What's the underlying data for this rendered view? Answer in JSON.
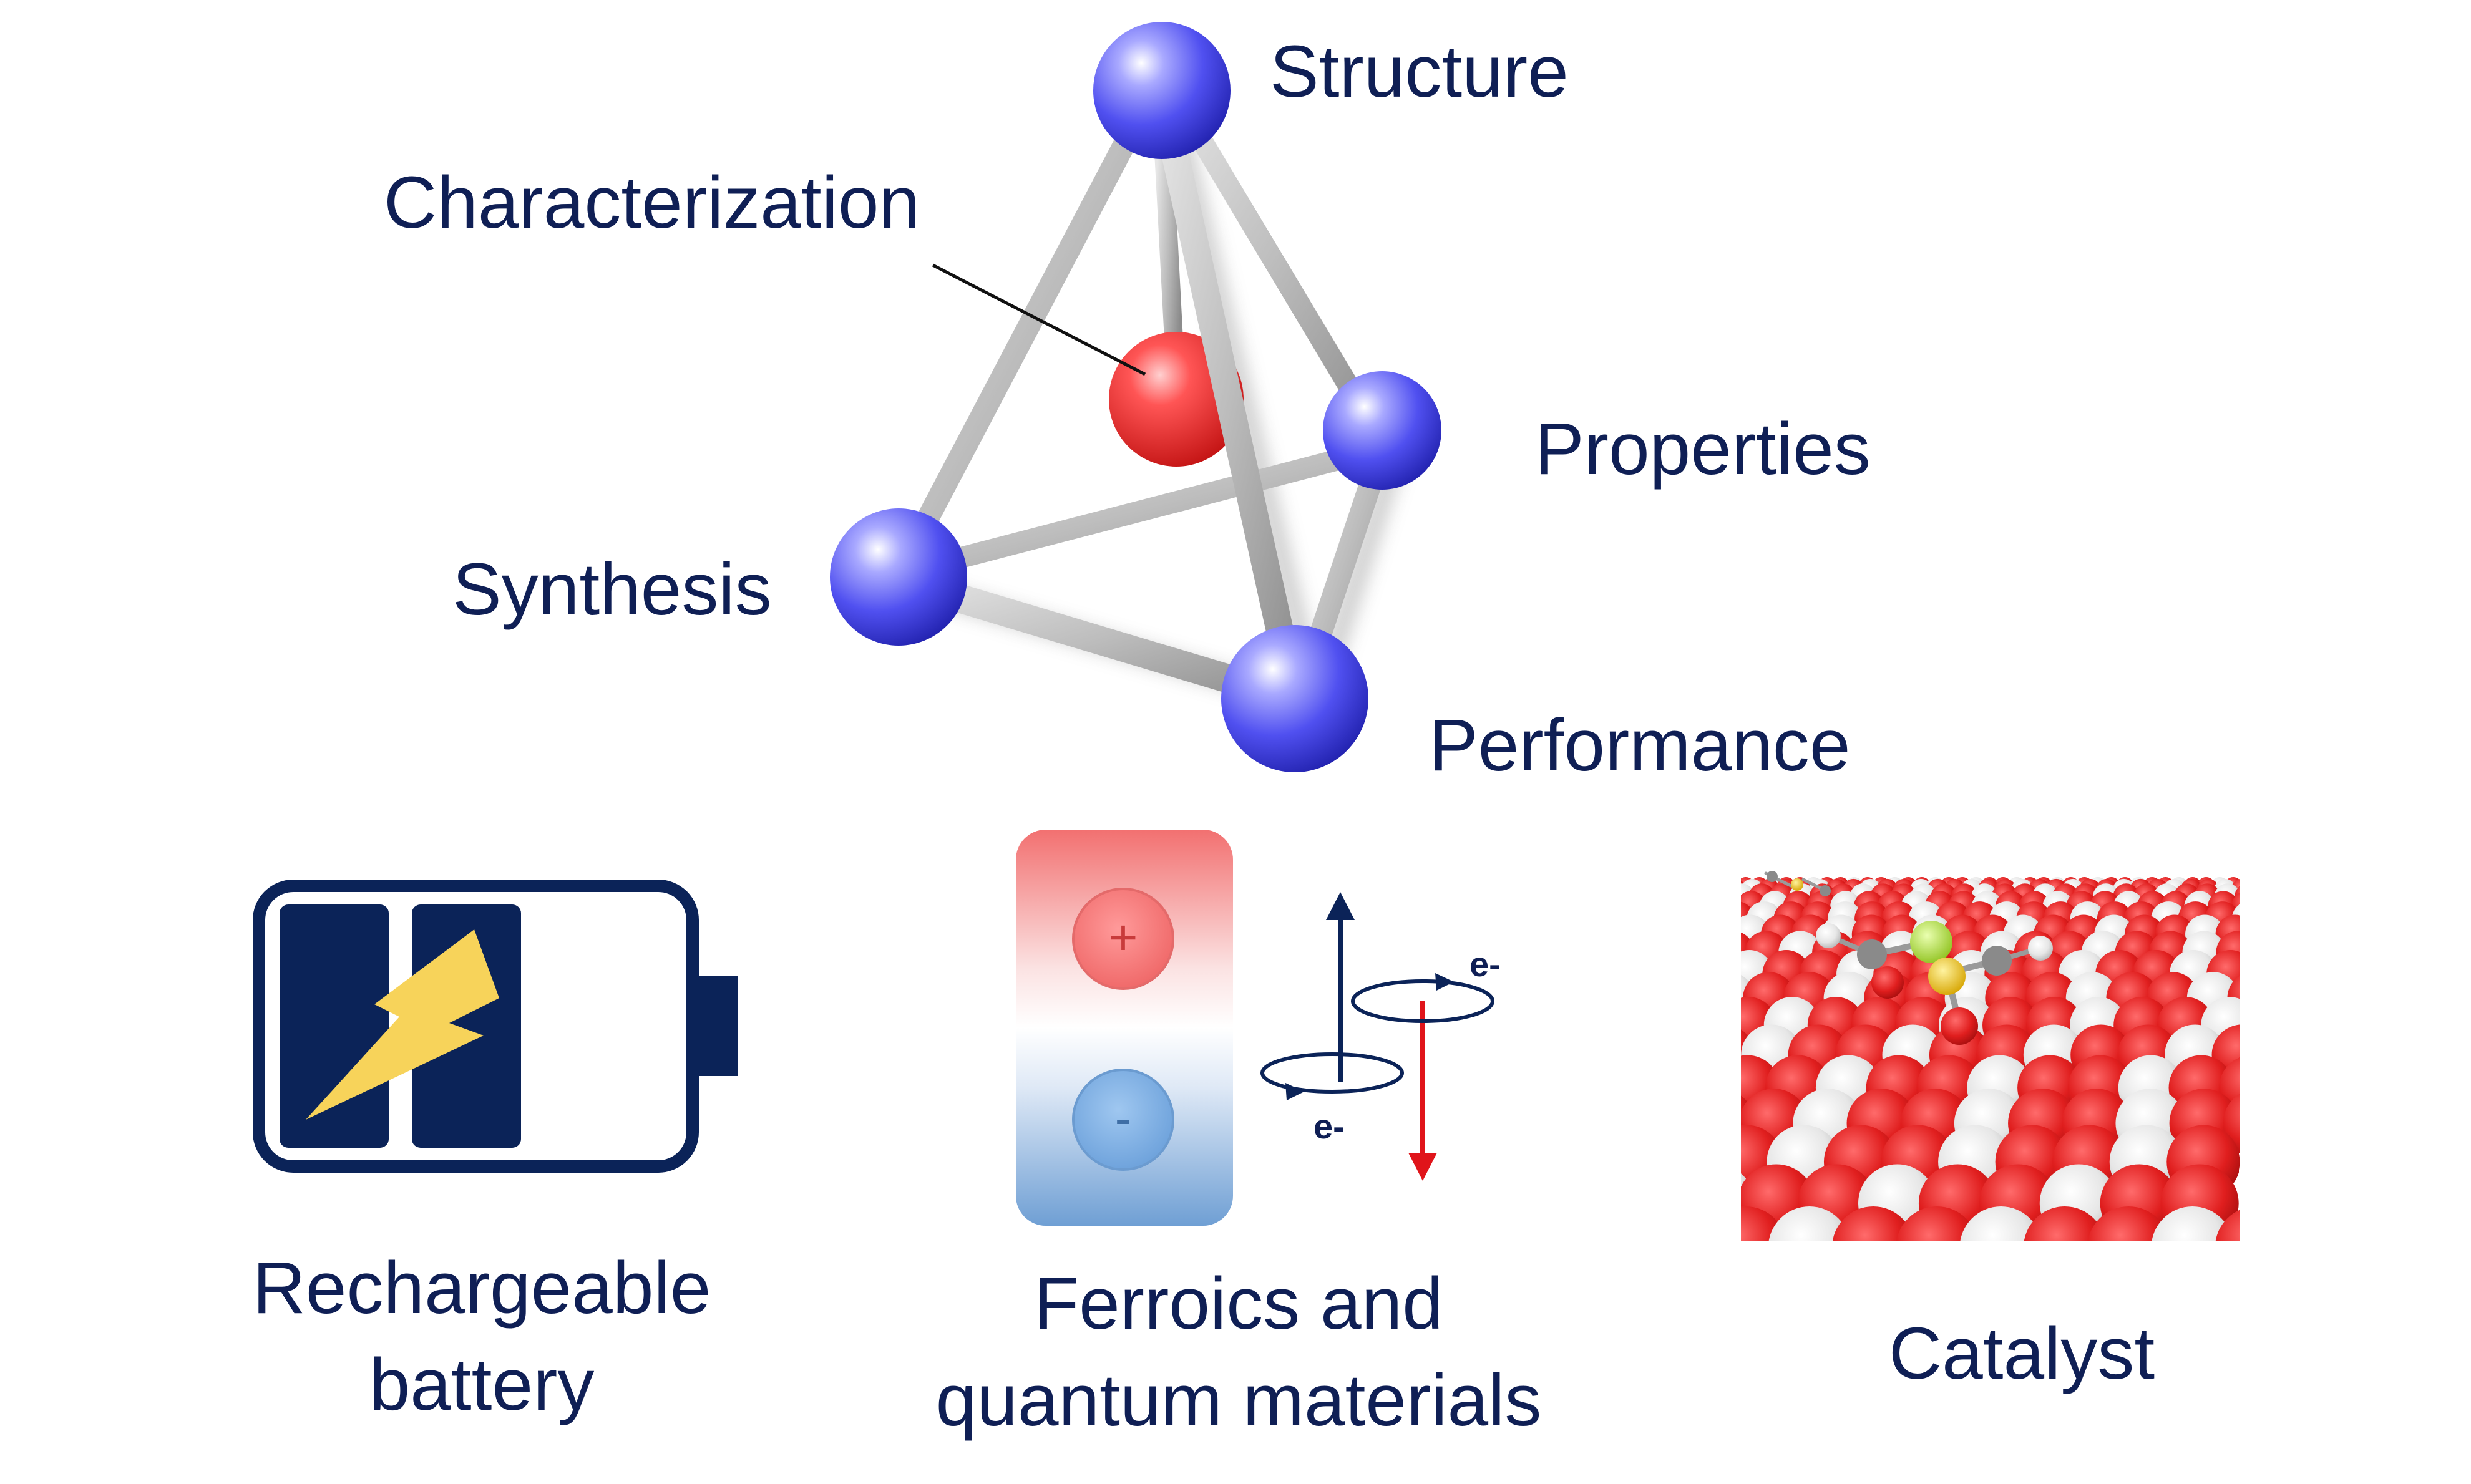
{
  "tetrahedron": {
    "labels": {
      "structure": "Structure",
      "characterization": "Characterization",
      "properties": "Properties",
      "synthesis": "Synthesis",
      "performance": "Performance"
    }
  },
  "applications": {
    "battery": {
      "line1": "Rechargeable",
      "line2": "battery"
    },
    "ferroics": {
      "line1": "Ferroics and",
      "line2": "quantum materials",
      "plus_sign": "+",
      "minus_sign": "-",
      "electron_top": "e-",
      "electron_bottom": "e-"
    },
    "catalyst": {
      "label": "Catalyst"
    }
  },
  "colors": {
    "text": "#0f1f55",
    "node_blue": "#5b5bff",
    "node_red": "#ff3b3b",
    "rod_gray": "#b8b8b8",
    "battery_navy": "#0b2358",
    "bolt_yellow": "#f7d35a",
    "spin_red": "#e0141a"
  }
}
